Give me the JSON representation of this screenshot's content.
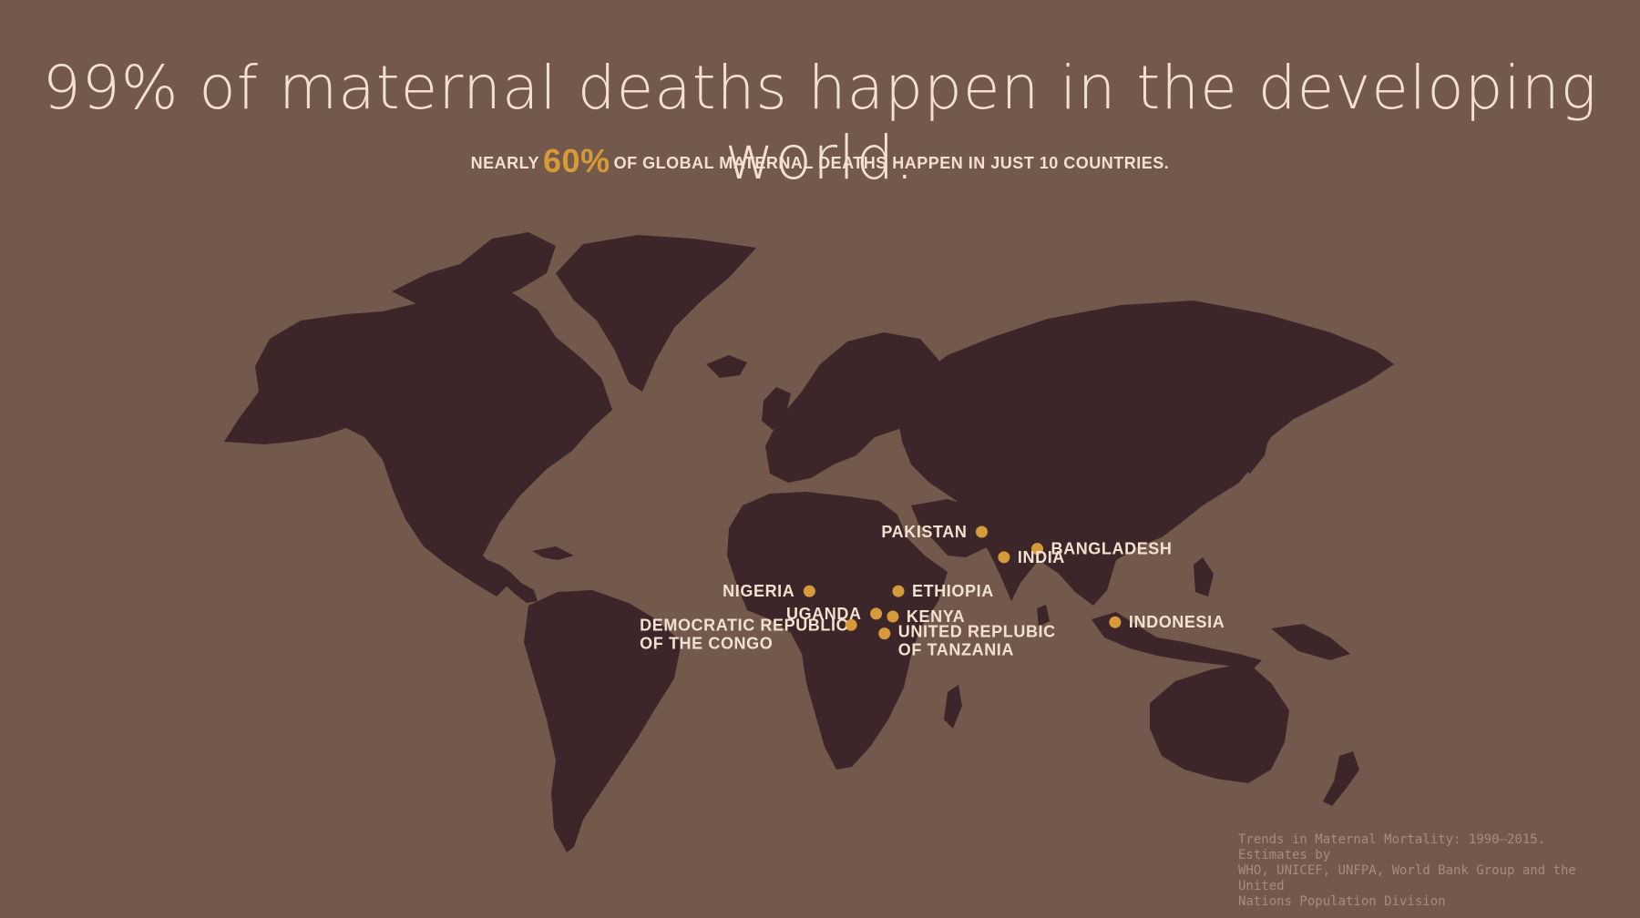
{
  "headline": "99% of maternal deaths happen in the developing world.",
  "subhead": {
    "prefix": "NEARLY",
    "highlight": "60%",
    "suffix": "OF GLOBAL MATERNAL DEATHS HAPPEN IN JUST 10 COUNTRIES."
  },
  "colors": {
    "background": "#72594b",
    "land": "#3d2629",
    "marker": "#d69a3a",
    "text": "#f3e0cf",
    "source_text": "#a58d7e"
  },
  "countries": [
    {
      "name": "PAKISTAN",
      "lines": [
        "PAKISTAN"
      ],
      "lat": 30,
      "lon": 70
    },
    {
      "name": "BANGLADESH",
      "lines": [
        "BANGLADESH"
      ],
      "lat": 24,
      "lon": 90
    },
    {
      "name": "INDIA",
      "lines": [
        "INDIA"
      ],
      "lat": 21,
      "lon": 78
    },
    {
      "name": "ETHIOPIA",
      "lines": [
        "ETHIOPIA"
      ],
      "lat": 9,
      "lon": 40
    },
    {
      "name": "KENYA",
      "lines": [
        "KENYA"
      ],
      "lat": 0,
      "lon": 38
    },
    {
      "name": "NIGERIA",
      "lines": [
        "NIGERIA"
      ],
      "lat": 9,
      "lon": 8
    },
    {
      "name": "UGANDA",
      "lines": [
        "UGANDA"
      ],
      "lat": 1,
      "lon": 32
    },
    {
      "name": "UNITED REPLUBIC OF TANZANIA",
      "lines": [
        "UNITED REPLUBIC",
        "OF TANZANIA"
      ],
      "lat": -6,
      "lon": 35
    },
    {
      "name": "DEMOCRATIC REPUBLIC OF THE CONGO",
      "lines": [
        "DEMOCRATIC REPUBLIC",
        "OF THE CONGO"
      ],
      "lat": -3,
      "lon": 23
    },
    {
      "name": "INDONESIA",
      "lines": [
        "INDONESIA"
      ],
      "lat": -2,
      "lon": 118
    }
  ],
  "source": {
    "line1": "Trends in Maternal Mortality: 1990–2015. Estimates by",
    "line2": "WHO, UNICEF, UNFPA, World Bank Group and the United",
    "line3": "Nations Population Division"
  }
}
